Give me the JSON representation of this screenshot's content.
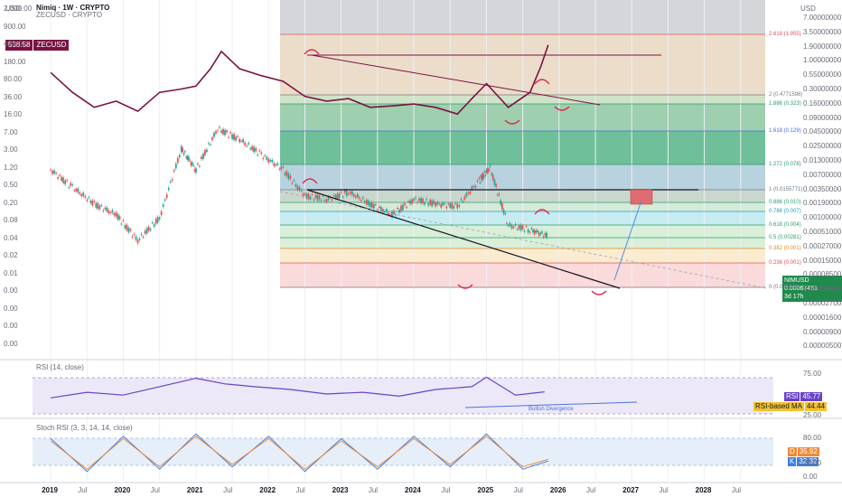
{
  "header": {
    "currency_left": "USD",
    "currency_right": "USD",
    "symbol_primary": "Nimiq · 1W · CRYPTO",
    "symbol_secondary": "ZECUSD · CRYPTO",
    "zec_price_badge": "538.58",
    "zec_ticker_badge": "ZECUSD"
  },
  "colors": {
    "zec_line": "#7b1143",
    "nim_up": "#26a69a",
    "nim_down": "#ef5350",
    "rsi_line": "#6a42c9",
    "rsi_ma": "#f5b73b",
    "stoch_k": "#3d7fe0",
    "stoch_d": "#f08a38",
    "badge_green": "#1e8a4c",
    "badge_rsi": "#6a42c9",
    "badge_ma": "#f2c230",
    "badge_d": "#f08a38",
    "badge_k": "#3d7fe0"
  },
  "axis_left": {
    "ticks": [
      "2,000.00",
      "900.00",
      "400.00",
      "180.00",
      "80.00",
      "36.00",
      "16.00",
      "7.00",
      "3.00",
      "1.20",
      "0.50",
      "0.20",
      "0.08",
      "0.04",
      "0.02",
      "0.01",
      "0.00",
      "0.00",
      "0.00",
      "0.00"
    ]
  },
  "axis_right": {
    "ticks": [
      "7.00000000",
      "3.50000000",
      "1.90000000",
      "1.00000000",
      "0.55000000",
      "0.30000000",
      "0.16000000",
      "0.09000000",
      "0.04500000",
      "0.02500000",
      "0.01300000",
      "0.00700000",
      "0.00350000",
      "0.00190000",
      "0.00100000",
      "0.00051000",
      "0.00027000",
      "0.00015000",
      "0.00008500",
      "0.00004600",
      "0.00002700",
      "0.00001600",
      "0.00000900",
      "0.00000500"
    ]
  },
  "fib_upper": [
    {
      "label": "2.618 (1.955)",
      "color": "#e0505a"
    },
    {
      "label": "2 (0.4771598)",
      "color": "#7a7a7a"
    },
    {
      "label": "1.886 (0.323)",
      "color": "#2a9d6a"
    },
    {
      "label": "1.618 (0.129)",
      "color": "#3f6fd8"
    },
    {
      "label": "1.272 (0.078)",
      "color": "#2a9d6a"
    }
  ],
  "fib_lower": [
    {
      "label": "1 (0.0155771)",
      "color": "#6d7a86"
    },
    {
      "label": "0.886 (0.010)",
      "color": "#2a9d6a"
    },
    {
      "label": "0.786 (0.007)",
      "color": "#1f9dc4"
    },
    {
      "label": "0.618 (0.004)",
      "color": "#2a9d6a"
    },
    {
      "label": "0.5 (0.00281)",
      "color": "#2a9d6a"
    },
    {
      "label": "0.382 (0.001)",
      "color": "#e08a2b"
    },
    {
      "label": "0.236 (0.001)",
      "color": "#e0505a"
    },
    {
      "label": "0 (0.000508)",
      "color": "#6d7a86"
    }
  ],
  "price_badge": {
    "symbol": "NIMUSD",
    "price": "0.00067451",
    "countdown": "3d 17h"
  },
  "rsi": {
    "title": "RSI (14, close)",
    "ticks": [
      "75.00",
      "25.00"
    ],
    "value": "45.77",
    "value_label": "RSI",
    "ma_label": "RSI-based MA",
    "ma_value": "44.44",
    "annotation": "Bullish Divergence"
  },
  "stoch": {
    "title": "Stoch RSI (3, 3, 14, 14, close)",
    "ticks": [
      "80.00",
      "20.00",
      "0.00"
    ],
    "d_label": "D",
    "d_value": "35.92",
    "k_label": "K",
    "k_value": "32.32"
  },
  "time_axis": {
    "labels": [
      "2019",
      "Jul",
      "2020",
      "Jul",
      "2021",
      "Jul",
      "2022",
      "Jul",
      "2023",
      "Jul",
      "2024",
      "Jul",
      "2025",
      "Jul",
      "2026",
      "Jul",
      "2027",
      "Jul",
      "2028",
      "Jul"
    ],
    "bold": [
      "2019",
      "2020",
      "2021",
      "2022",
      "2023",
      "2024",
      "2025",
      "2026",
      "2027",
      "2028"
    ]
  },
  "chart_data": [
    {
      "type": "line",
      "series": [
        {
          "name": "ZECUSD",
          "x": [
            2019.0,
            2019.3,
            2019.6,
            2019.9,
            2020.2,
            2020.5,
            2020.8,
            2021.0,
            2021.2,
            2021.35,
            2021.6,
            2021.9,
            2022.2,
            2022.5,
            2022.8,
            2023.1,
            2023.4,
            2023.7,
            2024.0,
            2024.3,
            2024.6,
            2024.8,
            2025.0,
            2025.3,
            2025.6,
            2025.75,
            2025.85
          ],
          "y": [
            150,
            60,
            30,
            40,
            25,
            60,
            70,
            80,
            180,
            400,
            180,
            130,
            100,
            50,
            40,
            45,
            30,
            32,
            35,
            30,
            22,
            45,
            90,
            30,
            60,
            200,
            538.58
          ]
        }
      ],
      "ylabel": "USD",
      "scale": "log"
    },
    {
      "type": "bar",
      "series": [
        {
          "name": "NIMUSD",
          "x": [
            2019.0,
            2019.3,
            2019.6,
            2019.9,
            2020.2,
            2020.5,
            2020.8,
            2021.0,
            2021.3,
            2021.6,
            2021.9,
            2022.2,
            2022.5,
            2022.8,
            2023.1,
            2023.4,
            2023.7,
            2024.0,
            2024.3,
            2024.6,
            2024.9,
            2025.05,
            2025.3,
            2025.6,
            2025.85
          ],
          "y": [
            0.004,
            0.0025,
            0.0016,
            0.0012,
            0.0006,
            0.0011,
            0.007,
            0.004,
            0.012,
            0.009,
            0.006,
            0.004,
            0.002,
            0.0018,
            0.0022,
            0.0016,
            0.0012,
            0.0018,
            0.0016,
            0.0015,
            0.003,
            0.0042,
            0.0009,
            0.0008,
            0.00067451
          ]
        }
      ],
      "scale": "log"
    },
    {
      "type": "line",
      "series": [
        {
          "name": "RSI",
          "x": [
            2019.0,
            2019.5,
            2020.0,
            2020.5,
            2021.0,
            2021.4,
            2021.8,
            2022.3,
            2022.8,
            2023.3,
            2023.8,
            2024.3,
            2024.8,
            2025.0,
            2025.4,
            2025.8
          ],
          "y": [
            35,
            45,
            40,
            55,
            70,
            60,
            55,
            50,
            42,
            45,
            38,
            50,
            55,
            72,
            40,
            45.77
          ]
        }
      ],
      "ylim": [
        0,
        100
      ]
    },
    {
      "type": "line",
      "series": [
        {
          "name": "K",
          "x": [
            2019.0,
            2019.5,
            2020.0,
            2020.5,
            2021.0,
            2021.5,
            2022.0,
            2022.5,
            2023.0,
            2023.5,
            2024.0,
            2024.5,
            2025.0,
            2025.5,
            2025.85
          ],
          "y": [
            80,
            10,
            85,
            15,
            90,
            20,
            85,
            10,
            80,
            15,
            85,
            20,
            90,
            15,
            32.32
          ]
        },
        {
          "name": "D",
          "x": [
            2019.0,
            2019.5,
            2020.0,
            2020.5,
            2021.0,
            2021.5,
            2022.0,
            2022.5,
            2023.0,
            2023.5,
            2024.0,
            2024.5,
            2025.0,
            2025.5,
            2025.85
          ],
          "y": [
            75,
            15,
            80,
            20,
            85,
            25,
            80,
            15,
            75,
            20,
            80,
            25,
            85,
            20,
            35.92
          ]
        }
      ],
      "ylim": [
        0,
        100
      ]
    }
  ]
}
